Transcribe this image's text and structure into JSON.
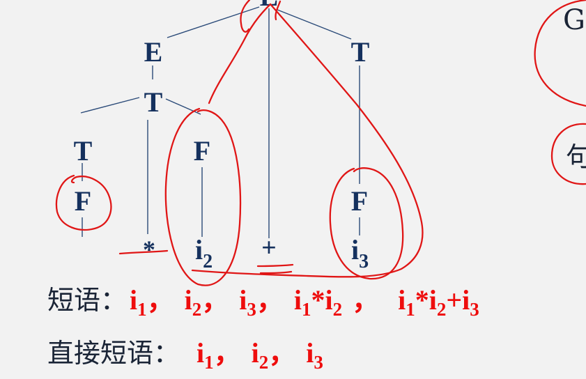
{
  "tree": {
    "root": "E",
    "e_left": "E",
    "t_right": "T",
    "t_mid": "T",
    "t_left": "T",
    "f_left": "F",
    "f_mid": "F",
    "f_right": "F",
    "times": "*",
    "plus": "+",
    "i2": {
      "base": "i",
      "sub": "2"
    },
    "i3": {
      "base": "i",
      "sub": "3"
    }
  },
  "side": {
    "g": "G",
    "ju": "句"
  },
  "phrases": {
    "label": "短语：",
    "items": [
      {
        "base": "i",
        "sub": "1"
      },
      {
        "base": "i",
        "sub": "2"
      },
      {
        "base": "i",
        "sub": "3"
      },
      {
        "parts": [
          {
            "base": "i",
            "sub": "1"
          },
          {
            "op": "*"
          },
          {
            "base": "i",
            "sub": "2"
          }
        ]
      },
      {
        "parts": [
          {
            "base": "i",
            "sub": "1"
          },
          {
            "op": "*"
          },
          {
            "base": "i",
            "sub": "2"
          },
          {
            "op": "+"
          },
          {
            "base": "i",
            "sub": "3"
          }
        ]
      }
    ],
    "separators": [
      "，",
      "，",
      "，",
      " ，"
    ]
  },
  "direct_phrases": {
    "label": "直接短语：",
    "items": [
      {
        "base": "i",
        "sub": "1"
      },
      {
        "base": "i",
        "sub": "2"
      },
      {
        "base": "i",
        "sub": "3"
      }
    ],
    "separators": [
      "，",
      "，"
    ]
  },
  "colors": {
    "tree_text": "#15315e",
    "annotation_red": "#e01616",
    "background": "#f2f2f2"
  }
}
